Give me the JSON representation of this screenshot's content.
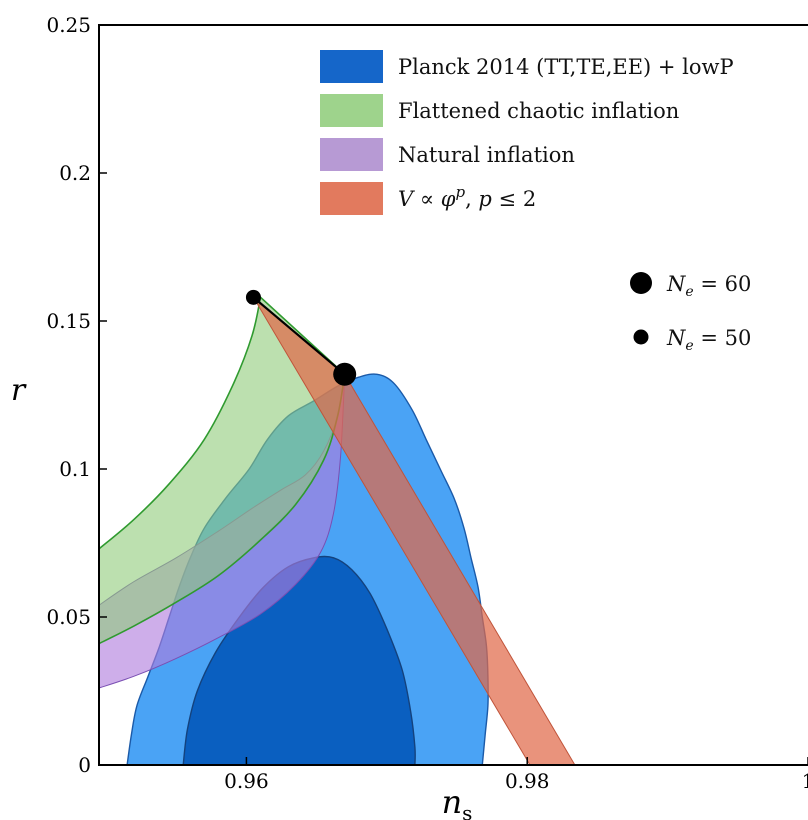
{
  "chart_data": {
    "type": "area",
    "xlabel": "n_s",
    "ylabel": "r",
    "xlim": [
      0.9495,
      1.0
    ],
    "ylim": [
      0,
      0.25
    ],
    "x_ticks": [
      0.96,
      0.98,
      1.0
    ],
    "x_tick_labels": [
      "0.96",
      "0.98",
      "1"
    ],
    "y_ticks": [
      0,
      0.05,
      0.1,
      0.15,
      0.2,
      0.25
    ],
    "y_tick_labels": [
      "0",
      "0.05",
      "0.1",
      "0.15",
      "0.2",
      "0.25"
    ],
    "grid": false,
    "legend_position": "top-right",
    "series": [
      {
        "name": "Planck 2014 (TT,TE,EE) + lowP",
        "kind": "contour",
        "color": "#1f77d9",
        "contour_68": [
          [
            0.9555,
            0
          ],
          [
            0.9558,
            0.012
          ],
          [
            0.9565,
            0.025
          ],
          [
            0.9578,
            0.038
          ],
          [
            0.9595,
            0.05
          ],
          [
            0.9612,
            0.06
          ],
          [
            0.963,
            0.067
          ],
          [
            0.9648,
            0.07
          ],
          [
            0.9662,
            0.07
          ],
          [
            0.9675,
            0.066
          ],
          [
            0.9688,
            0.058
          ],
          [
            0.97,
            0.046
          ],
          [
            0.9711,
            0.032
          ],
          [
            0.9717,
            0.018
          ],
          [
            0.972,
            0.006
          ],
          [
            0.972,
            0
          ]
        ],
        "contour_95": [
          [
            0.9515,
            0
          ],
          [
            0.9518,
            0.01
          ],
          [
            0.9522,
            0.02
          ],
          [
            0.953,
            0.03
          ],
          [
            0.9538,
            0.04
          ],
          [
            0.9545,
            0.05
          ],
          [
            0.9552,
            0.06
          ],
          [
            0.956,
            0.07
          ],
          [
            0.957,
            0.08
          ],
          [
            0.9585,
            0.09
          ],
          [
            0.9602,
            0.1
          ],
          [
            0.9615,
            0.11
          ],
          [
            0.963,
            0.118
          ],
          [
            0.9648,
            0.123
          ],
          [
            0.9665,
            0.128
          ],
          [
            0.968,
            0.131
          ],
          [
            0.9693,
            0.132
          ],
          [
            0.9705,
            0.129
          ],
          [
            0.9718,
            0.12
          ],
          [
            0.9728,
            0.11
          ],
          [
            0.9738,
            0.1
          ],
          [
            0.9748,
            0.09
          ],
          [
            0.9755,
            0.08
          ],
          [
            0.976,
            0.07
          ],
          [
            0.9765,
            0.06
          ],
          [
            0.9768,
            0.05
          ],
          [
            0.9771,
            0.04
          ],
          [
            0.9772,
            0.03
          ],
          [
            0.9772,
            0.02
          ],
          [
            0.977,
            0.01
          ],
          [
            0.9768,
            0
          ]
        ]
      },
      {
        "name": "Flattened chaotic inflation",
        "kind": "band",
        "color": "#8fcc7a",
        "edge_color": "#2f9a2f",
        "upper": [
          [
            0.9495,
            0.073
          ],
          [
            0.952,
            0.083
          ],
          [
            0.9545,
            0.095
          ],
          [
            0.957,
            0.11
          ],
          [
            0.959,
            0.128
          ],
          [
            0.9604,
            0.145
          ],
          [
            0.961,
            0.158
          ]
        ],
        "lower": [
          [
            0.9495,
            0.041
          ],
          [
            0.952,
            0.047
          ],
          [
            0.955,
            0.055
          ],
          [
            0.958,
            0.064
          ],
          [
            0.961,
            0.076
          ],
          [
            0.9635,
            0.088
          ],
          [
            0.9655,
            0.103
          ],
          [
            0.9665,
            0.118
          ],
          [
            0.967,
            0.132
          ]
        ]
      },
      {
        "name": "Natural inflation",
        "kind": "band",
        "color": "#b07cdd",
        "upper": [
          [
            0.9495,
            0.054
          ],
          [
            0.952,
            0.062
          ],
          [
            0.955,
            0.07
          ],
          [
            0.958,
            0.079
          ],
          [
            0.9605,
            0.087
          ],
          [
            0.9625,
            0.093
          ],
          [
            0.9642,
            0.098
          ],
          [
            0.9655,
            0.106
          ],
          [
            0.9665,
            0.118
          ],
          [
            0.967,
            0.132
          ]
        ],
        "lower": [
          [
            0.9495,
            0.026
          ],
          [
            0.952,
            0.03
          ],
          [
            0.955,
            0.036
          ],
          [
            0.958,
            0.043
          ],
          [
            0.961,
            0.051
          ],
          [
            0.9635,
            0.061
          ],
          [
            0.9653,
            0.072
          ],
          [
            0.9662,
            0.085
          ],
          [
            0.9667,
            0.104
          ],
          [
            0.967,
            0.132
          ]
        ]
      },
      {
        "name": "V ∝ φ^p, p ≤ 2",
        "kind": "polygon",
        "color": "#e06a4a",
        "points": [
          [
            0.9605,
            0.158
          ],
          [
            0.967,
            0.132
          ],
          [
            0.9834,
            0
          ],
          [
            0.9802,
            0
          ]
        ]
      }
    ],
    "points": [
      {
        "label": "N_e = 60",
        "n_s": 0.967,
        "r": 0.132,
        "size": "large"
      },
      {
        "label": "N_e = 50",
        "n_s": 0.9605,
        "r": 0.158,
        "size": "small"
      }
    ]
  },
  "legend": {
    "items": [
      {
        "label": "Planck 2014 (TT,TE,EE) + lowP",
        "color": "#1566c9"
      },
      {
        "label": "Flattened chaotic inflation",
        "color": "#9ed38c"
      },
      {
        "label": "Natural inflation",
        "color": "#b79ad4"
      },
      {
        "label": "V ∝ φ^p, p ≤ 2",
        "color": "#e27a5e"
      }
    ],
    "markers": [
      {
        "label": "N_e = 60",
        "size": "large"
      },
      {
        "label": "N_e = 50",
        "size": "small"
      }
    ]
  }
}
